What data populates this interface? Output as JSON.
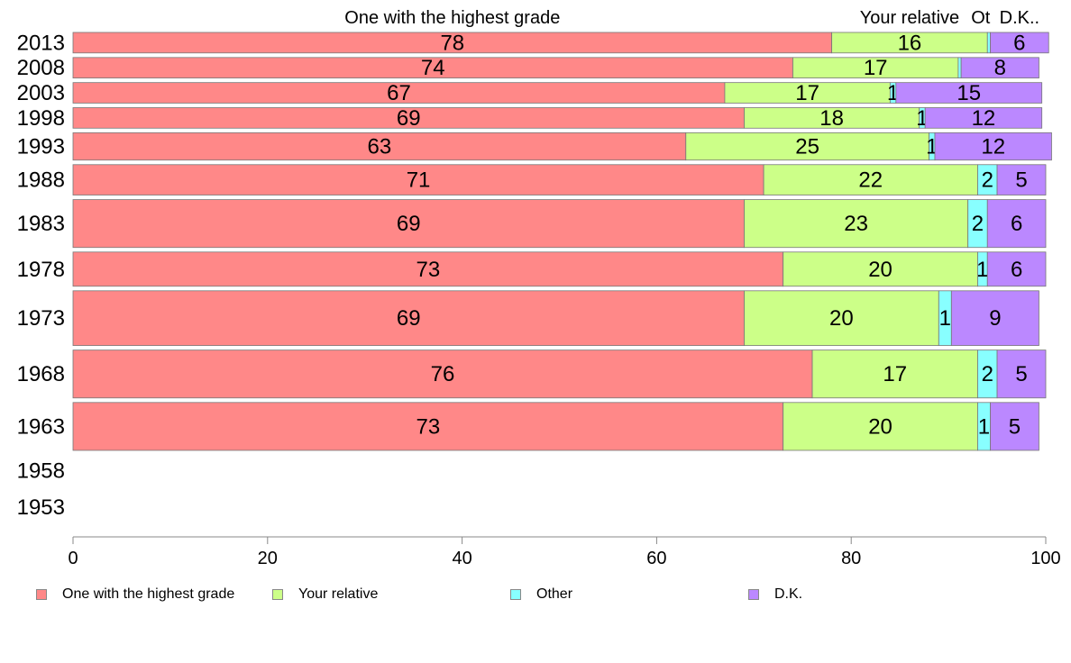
{
  "chart_data": {
    "type": "bar",
    "orientation": "horizontal",
    "stacked": true,
    "categories": [
      "2013",
      "2008",
      "2003",
      "1998",
      "1993",
      "1988",
      "1983",
      "1978",
      "1973",
      "1968",
      "1963",
      "1958",
      "1953"
    ],
    "series": [
      {
        "name": "One with the highest grade",
        "color": "#ff8888",
        "values": [
          78,
          74,
          67,
          69,
          63,
          71,
          69,
          73,
          69,
          76,
          73,
          null,
          null
        ],
        "labels": [
          "78",
          "74",
          "67",
          "69",
          "63",
          "71",
          "69",
          "73",
          "69",
          "76",
          "73",
          "",
          ""
        ]
      },
      {
        "name": "Your relative",
        "color": "#ccff88",
        "values": [
          16,
          17,
          17,
          18,
          25,
          22,
          23,
          20,
          20,
          17,
          20,
          null,
          null
        ],
        "labels": [
          "16",
          "17",
          "17",
          "18",
          "25",
          "22",
          "23",
          "20",
          "20",
          "17",
          "20",
          "",
          ""
        ]
      },
      {
        "name": "Other",
        "color": "#88ffff",
        "values": [
          0.3,
          0.3,
          0.6,
          0.6,
          0.6,
          2,
          2,
          1,
          1.3,
          2,
          1.3,
          null,
          null
        ],
        "labels": [
          "",
          "",
          "1",
          "1",
          "1",
          "2",
          "2",
          "1",
          "1",
          "2",
          "1",
          "",
          ""
        ]
      },
      {
        "name": "D.K.",
        "color": "#bb88ff",
        "values": [
          6,
          8,
          15,
          12,
          12,
          5,
          6,
          6,
          9,
          5,
          5,
          null,
          null
        ],
        "labels": [
          "6",
          "8",
          "15",
          "12",
          "12",
          "5",
          "6",
          "6",
          "9",
          "5",
          "5",
          "",
          ""
        ]
      }
    ],
    "bar_weights": [
      1,
      1,
      1,
      1,
      1.5,
      1.7,
      3,
      2,
      3.5,
      3,
      3,
      0,
      0
    ],
    "header_labels": [
      {
        "text": "One with the highest grade",
        "series": 0
      },
      {
        "text": "Your relative",
        "series": 1
      },
      {
        "text": "Ot",
        "series": 2
      },
      {
        "text": "D.K..",
        "series": 3
      }
    ],
    "x_ticks": [
      "0",
      "20",
      "40",
      "60",
      "80",
      "100"
    ],
    "xlim": [
      0,
      100
    ],
    "title": "",
    "xlabel": "",
    "ylabel": "",
    "grid": false,
    "legend_position": "bottom"
  }
}
